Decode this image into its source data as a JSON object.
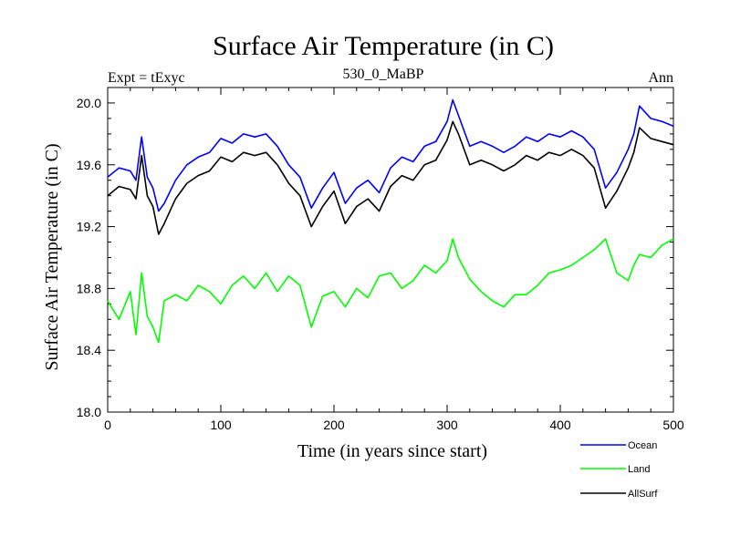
{
  "chart_data": {
    "type": "line",
    "title": "Surface Air Temperature (in C)",
    "subtitle_left": "Expt = tExyc",
    "subtitle_center": "530_0_MaBP",
    "subtitle_right": "Ann",
    "xlabel": "Time (in years since start)",
    "ylabel": "Surface Air Temperature (in C)",
    "xlim": [
      0,
      500
    ],
    "ylim": [
      18.0,
      20.1
    ],
    "x_ticks": [
      0,
      100,
      200,
      300,
      400,
      500
    ],
    "x_tick_labels": [
      "0",
      "100",
      "200",
      "300",
      "400",
      "500"
    ],
    "y_ticks": [
      18.0,
      18.4,
      18.8,
      19.2,
      19.6,
      20.0
    ],
    "y_tick_labels": [
      "18.0",
      "18.4",
      "18.8",
      "19.2",
      "19.6",
      "20.0"
    ],
    "grid": false,
    "legend_position": "bottom-right, below plot",
    "series": [
      {
        "name": "Ocean",
        "color": "#0000ff",
        "x": [
          0,
          10,
          20,
          25,
          30,
          35,
          40,
          45,
          50,
          60,
          70,
          80,
          90,
          100,
          110,
          120,
          130,
          140,
          150,
          160,
          170,
          180,
          190,
          200,
          210,
          220,
          230,
          240,
          250,
          260,
          270,
          280,
          290,
          300,
          305,
          310,
          320,
          330,
          340,
          350,
          360,
          370,
          380,
          390,
          400,
          410,
          420,
          430,
          440,
          450,
          460,
          465,
          470,
          480,
          490,
          500
        ],
        "values": [
          19.52,
          19.58,
          19.56,
          19.5,
          19.78,
          19.52,
          19.45,
          19.3,
          19.35,
          19.5,
          19.6,
          19.65,
          19.68,
          19.77,
          19.74,
          19.8,
          19.78,
          19.8,
          19.72,
          19.6,
          19.52,
          19.32,
          19.45,
          19.55,
          19.35,
          19.45,
          19.5,
          19.42,
          19.58,
          19.65,
          19.62,
          19.72,
          19.75,
          19.88,
          20.02,
          19.92,
          19.72,
          19.75,
          19.72,
          19.68,
          19.72,
          19.78,
          19.75,
          19.8,
          19.78,
          19.82,
          19.78,
          19.7,
          19.45,
          19.55,
          19.7,
          19.8,
          19.98,
          19.9,
          19.88,
          19.85
        ]
      },
      {
        "name": "Land",
        "color": "#00ff00",
        "x": [
          0,
          10,
          20,
          25,
          30,
          35,
          40,
          45,
          50,
          60,
          70,
          80,
          90,
          100,
          110,
          120,
          130,
          140,
          150,
          160,
          170,
          180,
          190,
          200,
          210,
          220,
          230,
          240,
          250,
          260,
          270,
          280,
          290,
          300,
          305,
          310,
          320,
          330,
          340,
          350,
          360,
          370,
          380,
          390,
          400,
          410,
          420,
          430,
          440,
          450,
          460,
          465,
          470,
          480,
          490,
          500
        ],
        "values": [
          18.72,
          18.6,
          18.78,
          18.5,
          18.9,
          18.62,
          18.55,
          18.45,
          18.72,
          18.76,
          18.72,
          18.82,
          18.78,
          18.7,
          18.82,
          18.88,
          18.8,
          18.9,
          18.78,
          18.88,
          18.82,
          18.55,
          18.75,
          18.78,
          18.68,
          18.8,
          18.74,
          18.88,
          18.9,
          18.8,
          18.85,
          18.95,
          18.9,
          18.98,
          19.12,
          19.0,
          18.86,
          18.78,
          18.72,
          18.68,
          18.76,
          18.76,
          18.82,
          18.9,
          18.92,
          18.95,
          19.0,
          19.05,
          19.12,
          18.9,
          18.85,
          18.95,
          19.02,
          19.0,
          19.08,
          19.12
        ]
      },
      {
        "name": "AllSurf",
        "color": "#000000",
        "x": [
          0,
          10,
          20,
          25,
          30,
          35,
          40,
          45,
          50,
          60,
          70,
          80,
          90,
          100,
          110,
          120,
          130,
          140,
          150,
          160,
          170,
          180,
          190,
          200,
          210,
          220,
          230,
          240,
          250,
          260,
          270,
          280,
          290,
          300,
          305,
          310,
          320,
          330,
          340,
          350,
          360,
          370,
          380,
          390,
          400,
          410,
          420,
          430,
          440,
          450,
          460,
          465,
          470,
          480,
          490,
          500
        ],
        "values": [
          19.4,
          19.46,
          19.44,
          19.38,
          19.66,
          19.4,
          19.33,
          19.15,
          19.22,
          19.38,
          19.48,
          19.53,
          19.56,
          19.65,
          19.62,
          19.68,
          19.66,
          19.68,
          19.6,
          19.48,
          19.4,
          19.2,
          19.33,
          19.43,
          19.22,
          19.33,
          19.38,
          19.3,
          19.46,
          19.53,
          19.5,
          19.6,
          19.63,
          19.76,
          19.88,
          19.8,
          19.6,
          19.63,
          19.6,
          19.56,
          19.6,
          19.66,
          19.63,
          19.68,
          19.66,
          19.7,
          19.66,
          19.58,
          19.32,
          19.43,
          19.58,
          19.68,
          19.84,
          19.77,
          19.75,
          19.73
        ]
      }
    ]
  }
}
